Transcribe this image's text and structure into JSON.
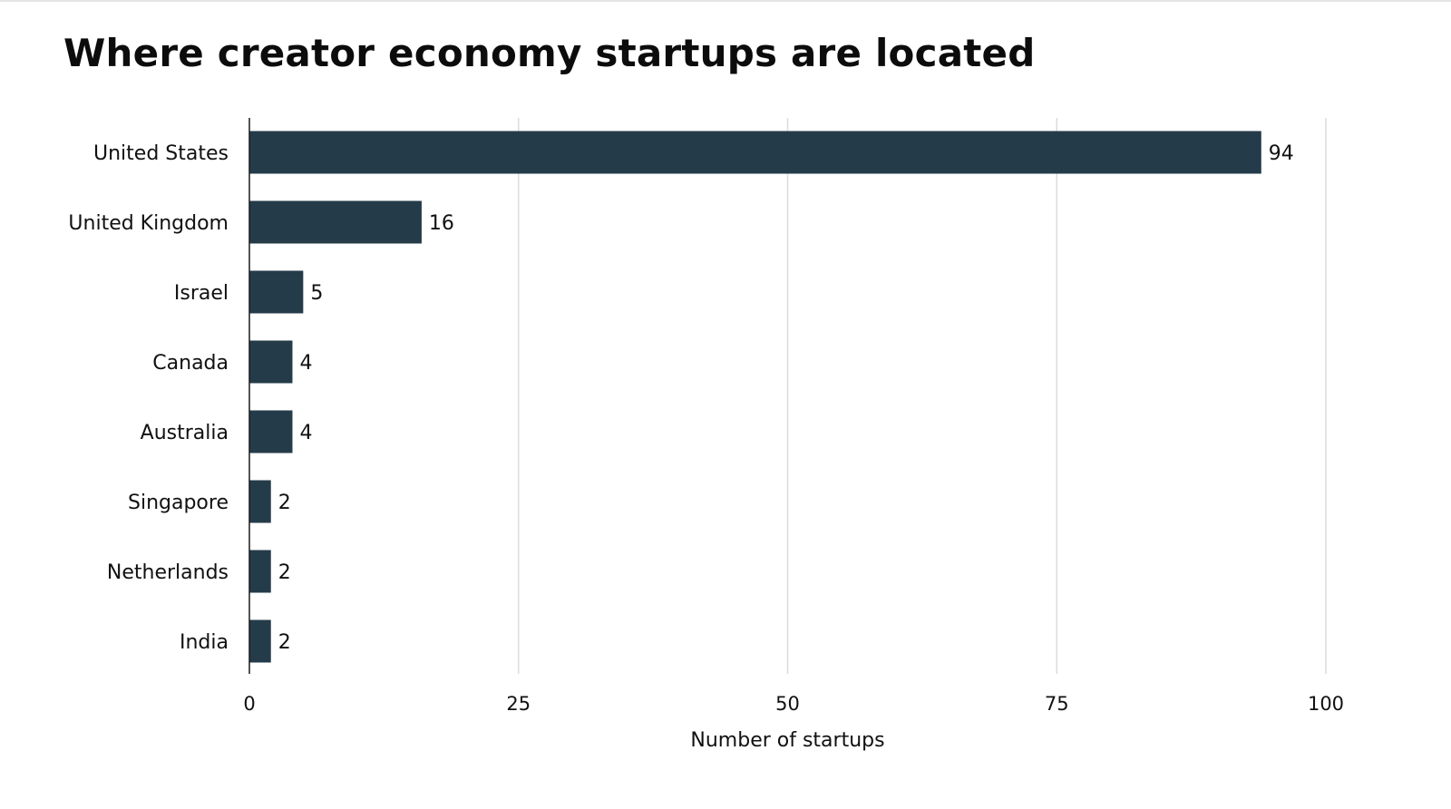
{
  "chart_data": {
    "type": "bar",
    "orientation": "horizontal",
    "title": "Where creator economy startups are located",
    "categories": [
      "United States",
      "United Kingdom",
      "Israel",
      "Canada",
      "Australia",
      "Singapore",
      "Netherlands",
      "India"
    ],
    "values": [
      94,
      16,
      5,
      4,
      4,
      2,
      2,
      2
    ],
    "value_labels": [
      "94",
      "16",
      "5",
      "4",
      "4",
      "2",
      "2",
      "2"
    ],
    "xlabel": "Number of startups",
    "ylabel": "",
    "xlim": [
      0,
      100
    ],
    "xticks": [
      0,
      25,
      50,
      75,
      100
    ],
    "xtick_labels": [
      "0",
      "25",
      "50",
      "75",
      "100"
    ],
    "grid": "vertical",
    "legend": "none",
    "bar_color": "#243b4a",
    "grid_color": "#dcdcdc"
  }
}
